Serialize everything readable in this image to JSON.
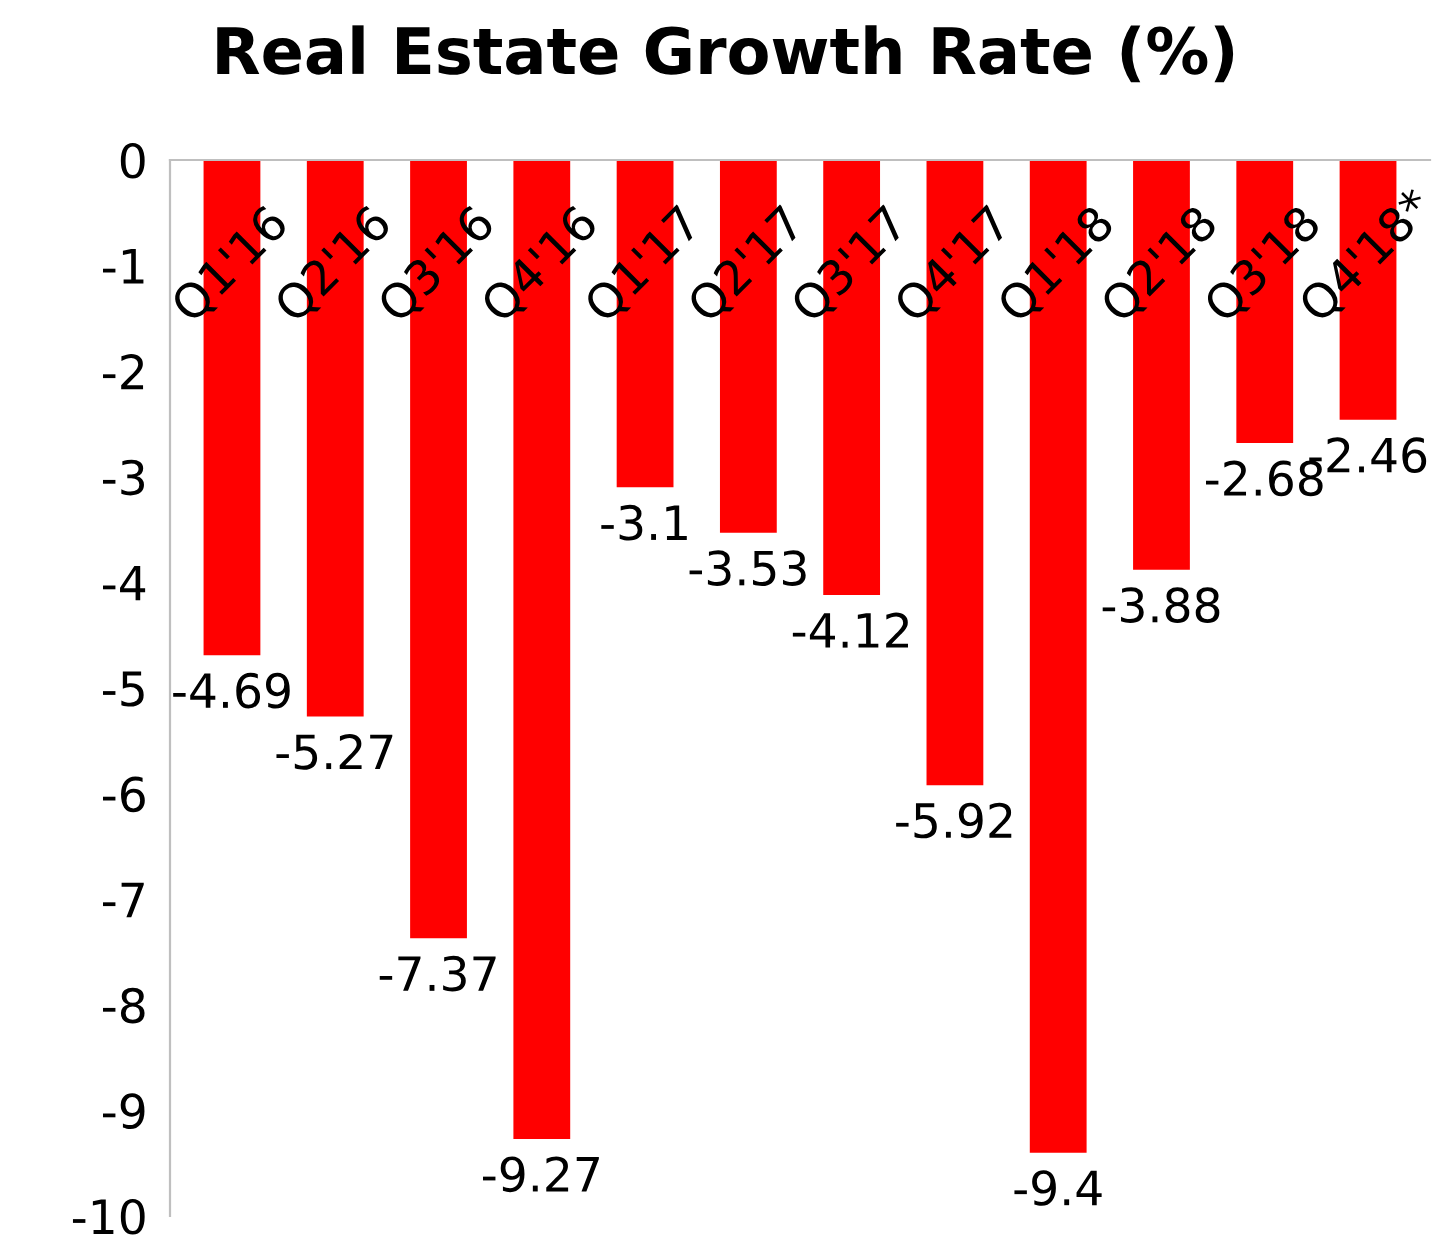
{
  "chart_data": {
    "type": "bar",
    "title": "Real Estate Growth Rate (%)",
    "categories": [
      "Q1'16",
      "Q2'16",
      "Q3'16",
      "Q4'16",
      "Q1'17",
      "Q2'17",
      "Q3'17",
      "Q4'17",
      "Q1'18",
      "Q2'18",
      "Q3'18",
      "Q4'18*"
    ],
    "values": [
      -4.69,
      -5.27,
      -7.37,
      -9.27,
      -3.1,
      -3.53,
      -4.12,
      -5.92,
      -9.4,
      -3.88,
      -2.68,
      -2.46
    ],
    "color": "#ff0000",
    "ylim": [
      -10,
      0
    ],
    "yticks": [
      -10,
      -9,
      -8,
      -7,
      -6,
      -5,
      -4,
      -3,
      -2,
      -1,
      0
    ],
    "grid": false,
    "data_labels": true
  }
}
